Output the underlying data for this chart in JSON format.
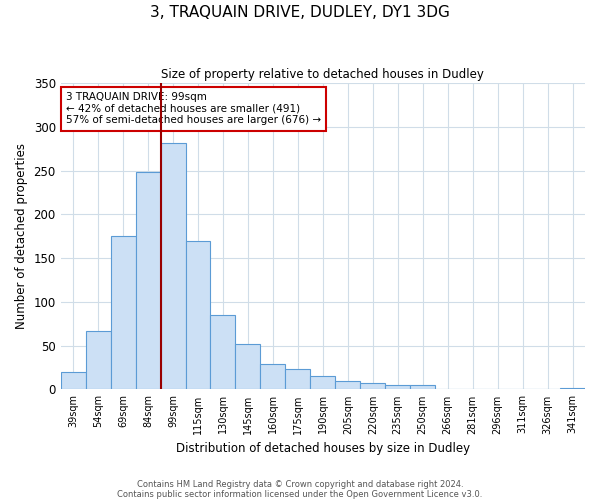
{
  "title": "3, TRAQUAIN DRIVE, DUDLEY, DY1 3DG",
  "subtitle": "Size of property relative to detached houses in Dudley",
  "xlabel": "Distribution of detached houses by size in Dudley",
  "ylabel": "Number of detached properties",
  "bar_labels": [
    "39sqm",
    "54sqm",
    "69sqm",
    "84sqm",
    "99sqm",
    "115sqm",
    "130sqm",
    "145sqm",
    "160sqm",
    "175sqm",
    "190sqm",
    "205sqm",
    "220sqm",
    "235sqm",
    "250sqm",
    "266sqm",
    "281sqm",
    "296sqm",
    "311sqm",
    "326sqm",
    "341sqm"
  ],
  "bar_values": [
    20,
    67,
    175,
    248,
    282,
    170,
    85,
    52,
    29,
    23,
    15,
    10,
    7,
    5,
    5,
    1,
    0,
    0,
    0,
    0,
    2
  ],
  "bar_color": "#cce0f5",
  "bar_edge_color": "#5b9bd5",
  "marker_index": 4,
  "marker_color": "#990000",
  "ylim": [
    0,
    350
  ],
  "yticks": [
    0,
    50,
    100,
    150,
    200,
    250,
    300,
    350
  ],
  "annotation_title": "3 TRAQUAIN DRIVE: 99sqm",
  "annotation_line1": "← 42% of detached houses are smaller (491)",
  "annotation_line2": "57% of semi-detached houses are larger (676) →",
  "footnote1": "Contains HM Land Registry data © Crown copyright and database right 2024.",
  "footnote2": "Contains public sector information licensed under the Open Government Licence v3.0.",
  "background_color": "#ffffff",
  "grid_color": "#d0dde8"
}
